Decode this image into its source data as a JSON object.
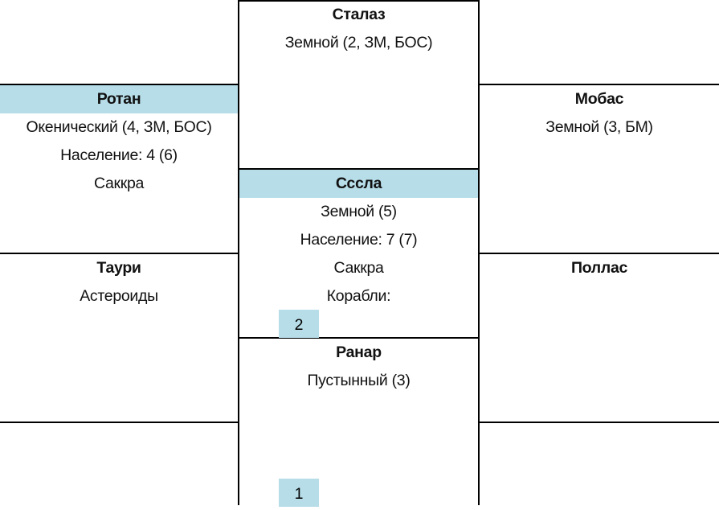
{
  "systems": {
    "stalaz": {
      "name": "Сталаз",
      "lines": [
        "Земной (2, ЗМ, БОС)"
      ]
    },
    "rotan": {
      "name": "Ротан",
      "lines": [
        "Окенический (4, ЗМ, БОС)",
        "Население: 4 (6)",
        "Саккра"
      ]
    },
    "mobas": {
      "name": "Мобас",
      "lines": [
        "Земной (3, БМ)"
      ]
    },
    "sssla": {
      "name": "Сссла",
      "lines": [
        "Земной (5)",
        "Население: 7 (7)",
        "Саккра",
        "Корабли:"
      ],
      "ships": "2"
    },
    "tauri": {
      "name": "Таури",
      "lines": [
        "Астероиды"
      ]
    },
    "pollas": {
      "name": "Поллас",
      "lines": []
    },
    "ranar": {
      "name": "Ранар",
      "lines": [
        "Пустынный (3)"
      ],
      "ships": "1"
    }
  },
  "colors": {
    "highlight": "#b7dde8"
  }
}
